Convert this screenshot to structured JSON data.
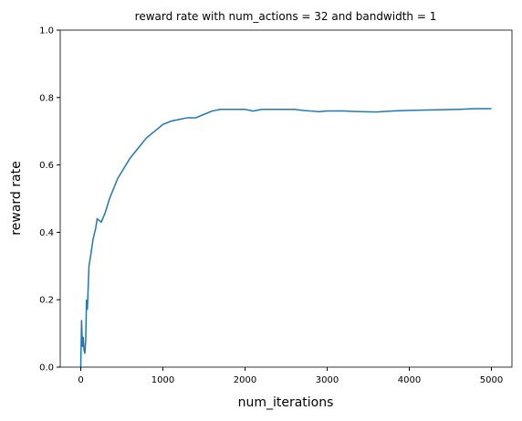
{
  "chart_data": {
    "type": "line",
    "title": "reward rate with num_actions = 32 and bandwidth = 1",
    "x_label": "num_iterations",
    "y_label": "reward rate",
    "x": [
      0,
      10,
      20,
      30,
      40,
      50,
      60,
      70,
      80,
      100,
      120,
      150,
      180,
      200,
      250,
      300,
      350,
      400,
      450,
      500,
      600,
      700,
      800,
      900,
      1000,
      1100,
      1200,
      1300,
      1400,
      1500,
      1600,
      1700,
      1800,
      1900,
      2000,
      2100,
      2200,
      2300,
      2400,
      2500,
      2600,
      2700,
      2800,
      2900,
      3000,
      3200,
      3400,
      3600,
      3800,
      4000,
      4200,
      4400,
      4600,
      4800,
      5000
    ],
    "values": [
      0,
      0.14,
      0.06,
      0.09,
      0.05,
      0.04,
      0.08,
      0.2,
      0.17,
      0.3,
      0.33,
      0.38,
      0.41,
      0.44,
      0.43,
      0.46,
      0.5,
      0.53,
      0.56,
      0.58,
      0.62,
      0.65,
      0.68,
      0.7,
      0.72,
      0.73,
      0.735,
      0.74,
      0.74,
      0.75,
      0.76,
      0.765,
      0.765,
      0.765,
      0.765,
      0.76,
      0.765,
      0.765,
      0.765,
      0.765,
      0.765,
      0.762,
      0.76,
      0.758,
      0.76,
      0.76,
      0.758,
      0.757,
      0.76,
      0.762,
      0.763,
      0.764,
      0.765,
      0.767,
      0.767
    ],
    "color": "#1f77b4",
    "xlim": [
      -250,
      5250
    ],
    "ylim": [
      0,
      1
    ],
    "xticks": [
      0,
      1000,
      2000,
      3000,
      4000,
      5000
    ],
    "yticks": [
      {
        "value": 0,
        "label": "0.0"
      },
      0.2,
      0.4,
      0.6,
      0.8,
      {
        "value": 1,
        "label": "1.0"
      }
    ],
    "grid": false
  }
}
